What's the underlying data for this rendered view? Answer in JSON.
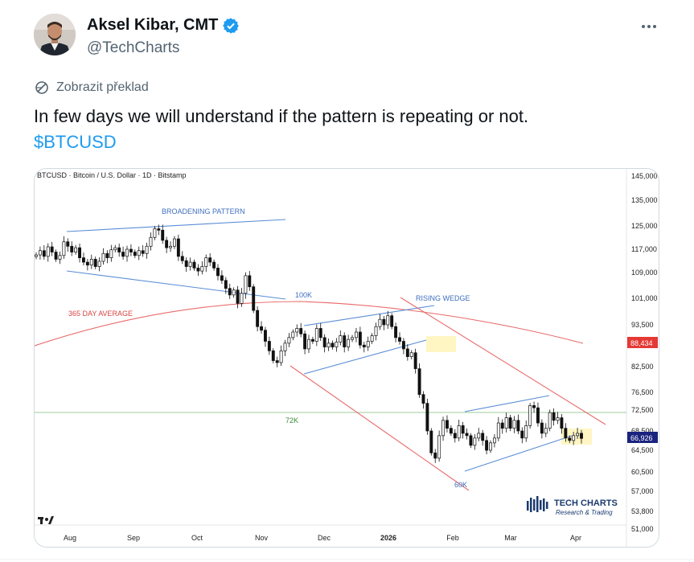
{
  "author": {
    "name": "Aksel Kibar, CMT",
    "handle": "@TechCharts"
  },
  "translate_label": "Zobrazit překlad",
  "tweet": {
    "text": "In few days we will understand if the pattern is repeating or not.",
    "hashtag": "$BTCUSD"
  },
  "colors": {
    "link": "#1d9bf0",
    "verified": "#1d9bf0",
    "bearish_level": "#e53935",
    "current_price": "#1a237e"
  },
  "icons": {
    "verified": "verified-badge-icon",
    "more": "more-options-icon",
    "translate": "translate-icon"
  },
  "chart_data": {
    "type": "candlestick",
    "title": "BTCUSD · Bitcoin / U.S. Dollar · 1D · Bitstamp",
    "x_ticks": [
      "Aug",
      "Sep",
      "Oct",
      "Nov",
      "Dec",
      "2026",
      "Jan",
      "Feb",
      "Mar",
      "Apr"
    ],
    "y_ticks": [
      "145,000",
      "135,000",
      "125,000",
      "117,000",
      "109,000",
      "101,000",
      "93,500",
      "82,500",
      "76,500",
      "72,500",
      "68,500",
      "64,500",
      "60,500",
      "57,000",
      "53,800",
      "51,000"
    ],
    "y_scale": "log",
    "price_tags": [
      {
        "value": "88,434",
        "color": "#e53935"
      },
      {
        "value": "66,926",
        "color": "#1a237e"
      }
    ],
    "annotations": [
      "BROADENING PATTERN",
      "365 DAY AVERAGE",
      "100K",
      "RISING WEDGE",
      "72K",
      "60K"
    ],
    "branding": {
      "name": "TECH CHARTS",
      "tagline": "Research & Trading"
    },
    "series": [
      {
        "closes": [
          115000,
          116500,
          114500,
          117800,
          116000,
          113500,
          114800,
          119500,
          118000,
          116000,
          117500,
          114000,
          112500,
          111500,
          113500,
          111000,
          112800,
          115500,
          114000,
          116800,
          117500,
          116000,
          114500,
          117000,
          116000,
          114800,
          116500,
          115500,
          118000,
          121000,
          124000,
          123500,
          120000,
          117500,
          118000,
          120500,
          114500,
          113000,
          111000,
          112500,
          110500,
          109500,
          111000,
          114000,
          112500,
          110500,
          108000,
          106500,
          104000,
          102000,
          103500,
          99500,
          102500,
          108000,
          104500,
          97500,
          93000,
          92000,
          89000,
          86500,
          84000,
          83500,
          86500,
          88500,
          90000,
          91500,
          92500,
          91000,
          87000,
          89500,
          89000,
          92500,
          90000,
          87500,
          88500,
          87500,
          88800,
          90500,
          87500,
          89500,
          90000,
          91500,
          88000,
          87500,
          89000,
          90500,
          93000,
          95000,
          93500,
          96000,
          93000,
          90000,
          89000,
          87000,
          85000,
          86000,
          82000,
          76000,
          74000,
          68500,
          64000,
          63000,
          67500,
          70500,
          69000,
          68000,
          67000,
          69500,
          68000,
          67500,
          65500,
          67000,
          68000,
          66500,
          64500,
          66000,
          67000,
          70000,
          69000,
          71000,
          69000,
          70500,
          68500,
          67000,
          69500,
          73500,
          73000,
          70000,
          68000,
          69000,
          72000,
          70500,
          71000,
          69000,
          67000,
          66500,
          67500,
          68000,
          66926
        ]
      }
    ]
  }
}
